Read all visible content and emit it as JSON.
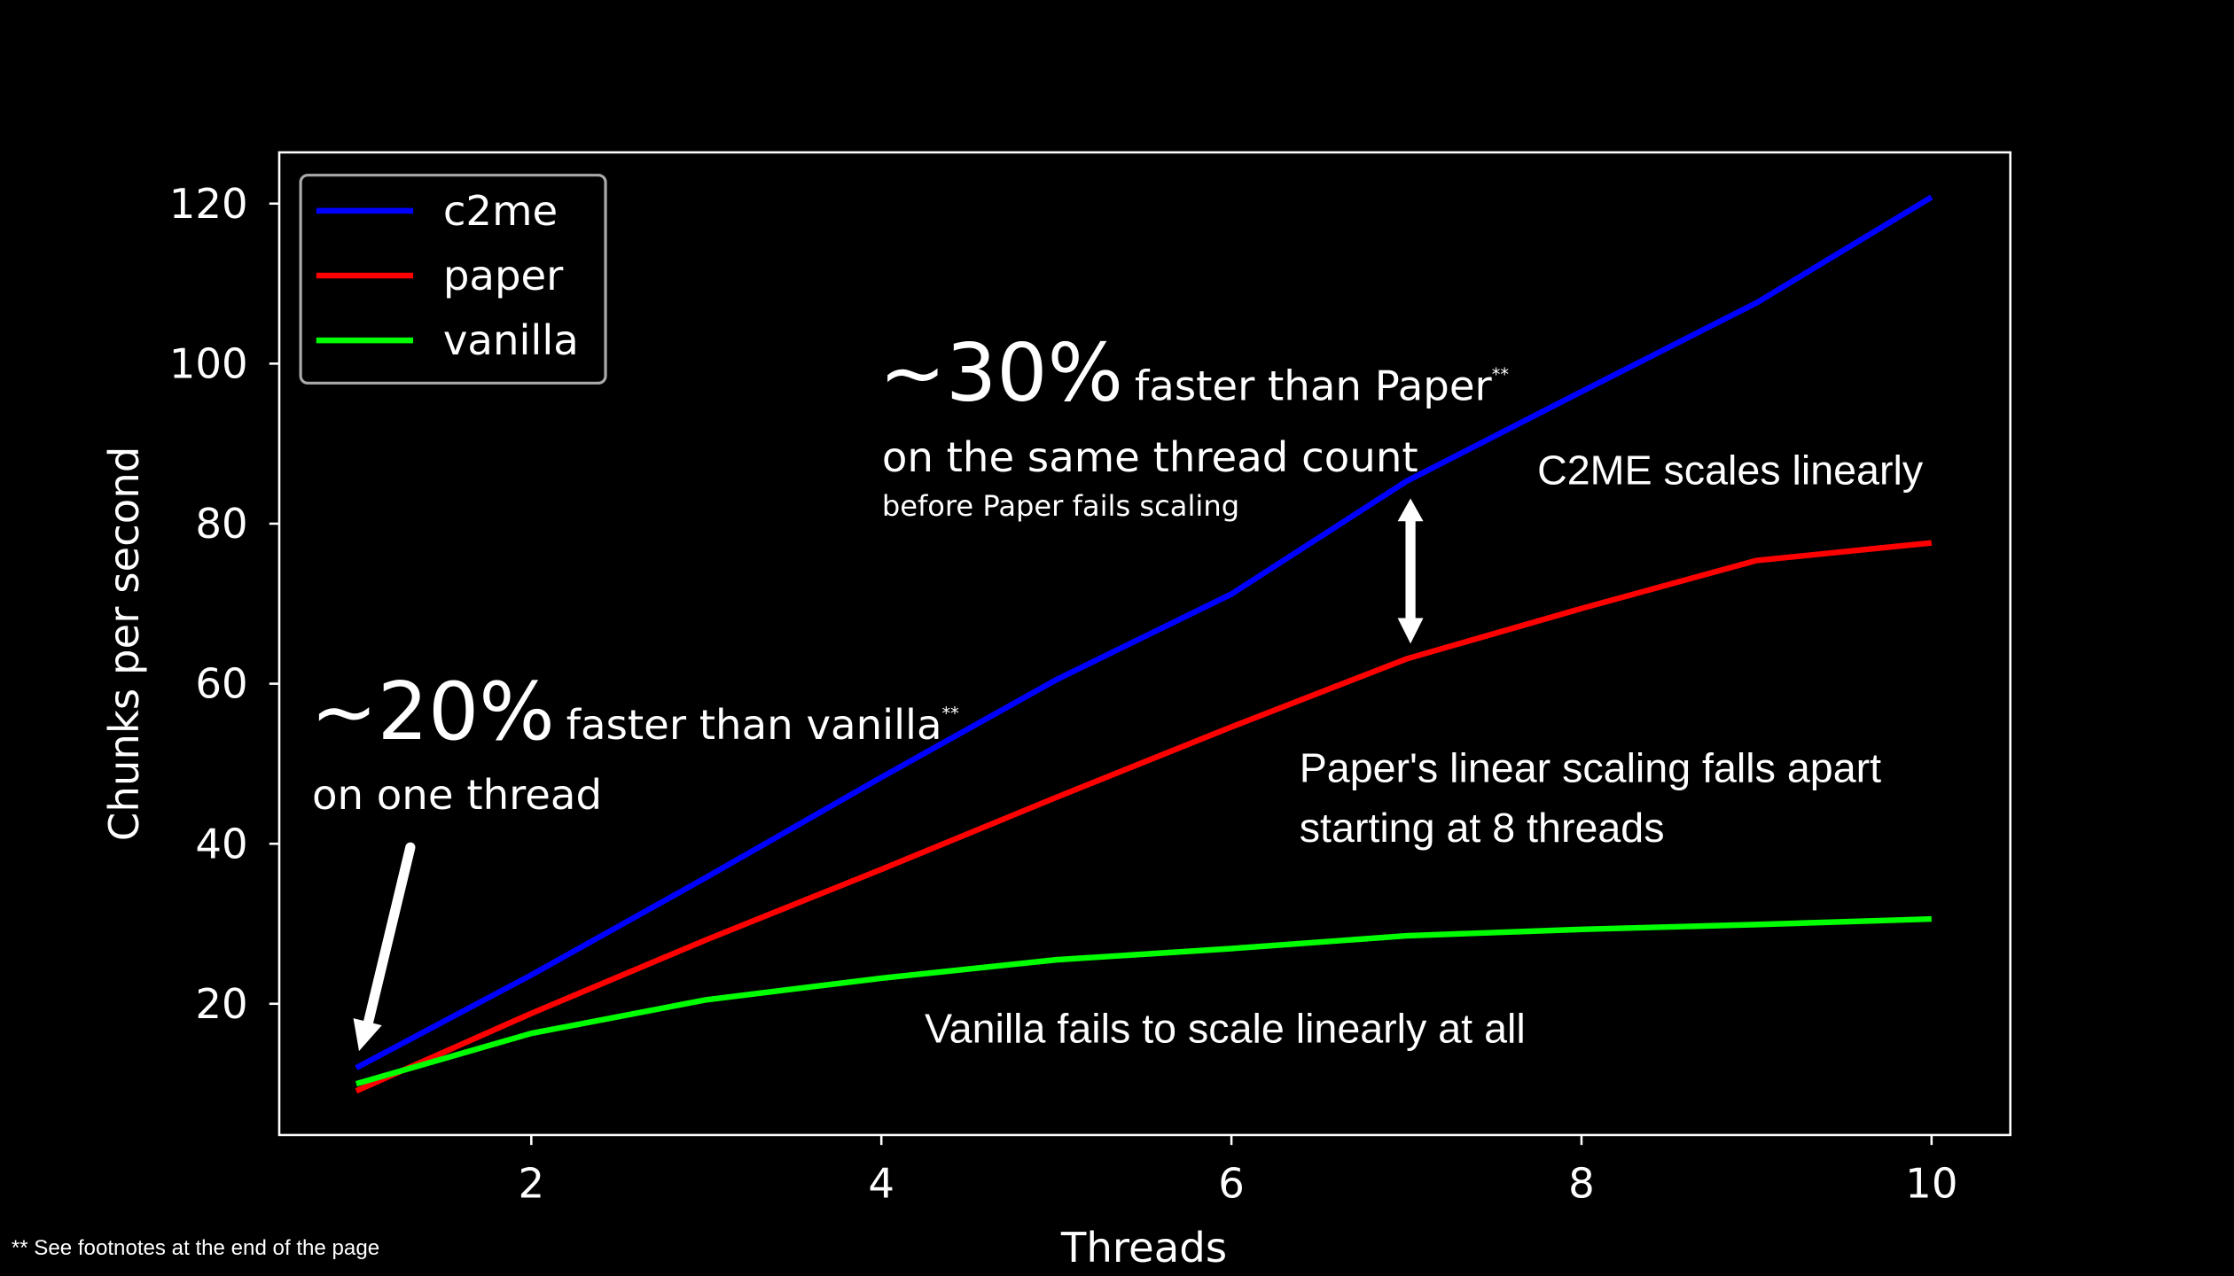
{
  "chart_data": {
    "type": "line",
    "xlabel": "Threads",
    "ylabel": "Chunks per second",
    "xlim": [
      0.56,
      10.45
    ],
    "ylim": [
      3.6,
      126.4
    ],
    "xticks": [
      2,
      4,
      6,
      8,
      10
    ],
    "yticks": [
      20,
      40,
      60,
      80,
      100,
      120
    ],
    "grid": false,
    "legend_placement": "top-left",
    "x": [
      1,
      2,
      3,
      4,
      5,
      6,
      7,
      8,
      9,
      10
    ],
    "series": [
      {
        "name": "c2me",
        "color": "#0000ff",
        "values": [
          12.0,
          23.6,
          35.8,
          48.3,
          60.5,
          71.2,
          85.3,
          96.5,
          107.6,
          120.8
        ]
      },
      {
        "name": "paper",
        "color": "#ff0000",
        "values": [
          9.1,
          18.8,
          28.0,
          36.8,
          45.8,
          54.6,
          63.1,
          69.4,
          75.4,
          77.6
        ]
      },
      {
        "name": "vanilla",
        "color": "#00ff00",
        "values": [
          10.0,
          16.3,
          20.5,
          23.2,
          25.5,
          26.9,
          28.5,
          29.3,
          29.9,
          30.6
        ]
      }
    ],
    "annotations": {
      "vanilla_big": "~20%",
      "vanilla_small": "faster than vanilla",
      "vanilla_star": "**",
      "vanilla_line2": "on one thread",
      "paper_big": "~30%",
      "paper_small": "faster than Paper",
      "paper_star": "**",
      "paper_line2": "on the same thread count",
      "paper_line3": "before Paper fails scaling",
      "c2me_scales": "C2ME scales linearly",
      "paper_falls_1": "Paper's linear scaling falls apart",
      "paper_falls_2": "starting at 8 threads",
      "vanilla_fails": "Vanilla fails to scale linearly at all"
    }
  },
  "footnote": "** See footnotes at the end of the page"
}
